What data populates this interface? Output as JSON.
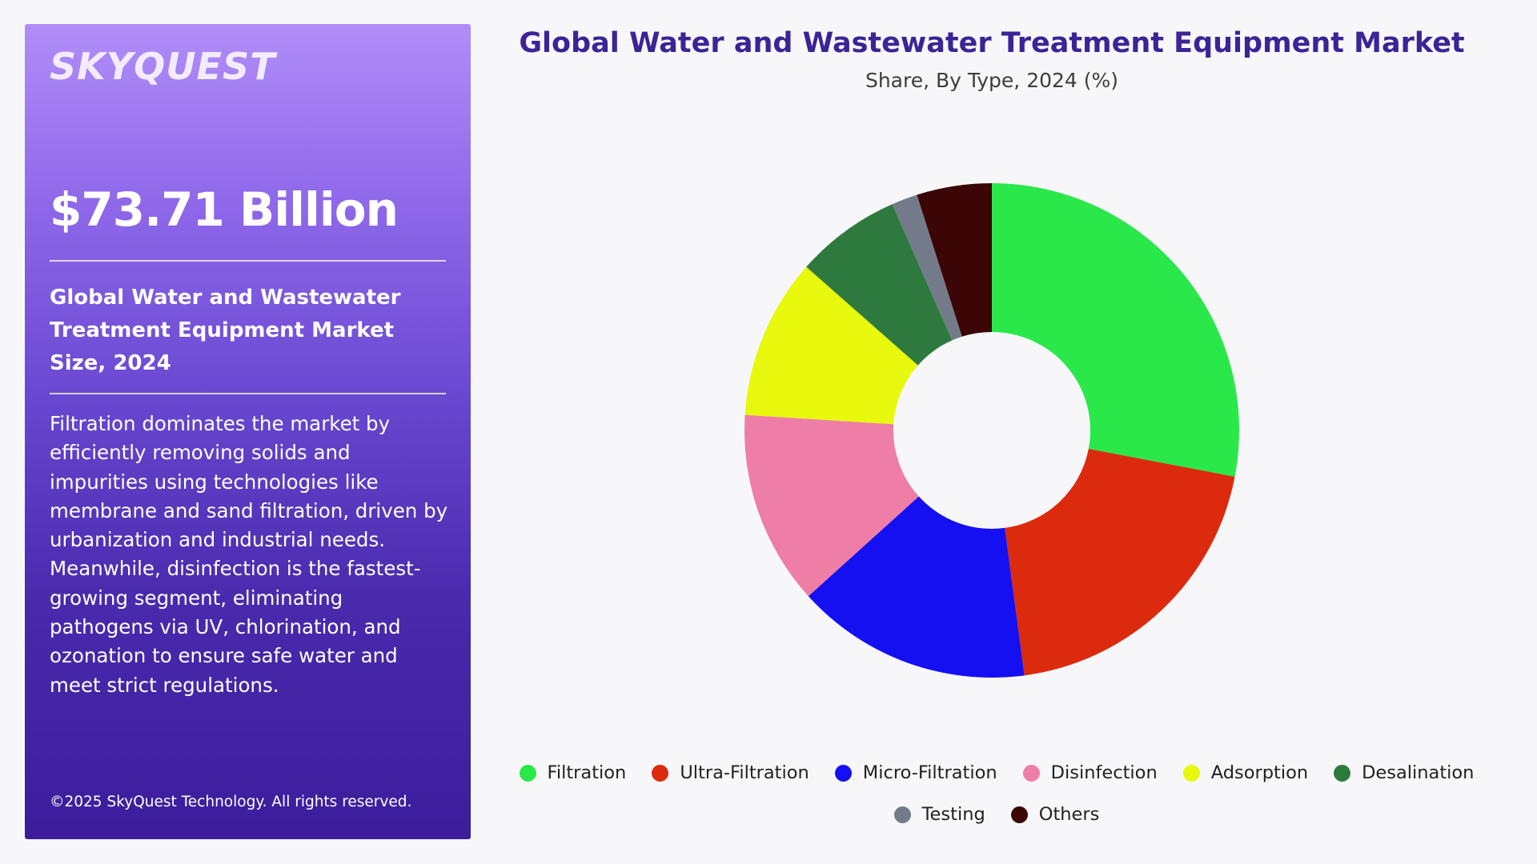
{
  "sidebar": {
    "logo": "SKYQUEST",
    "market_value": "$73.71 Billion",
    "market_title": "Global Water and Wastewater Treatment Equipment Market Size, 2024",
    "description": "Filtration dominates the market by efficiently removing solids and impurities using technologies like membrane and sand filtration, driven by urbanization and industrial needs. Meanwhile, disinfection is the fastest-growing segment, eliminating pathogens via UV, chlorination, and ozonation to ensure safe water and meet strict regulations.",
    "copyright": "©2025 SkyQuest Technology. All rights reserved."
  },
  "chart_data": {
    "type": "pie",
    "title": "Global Water and Wastewater Treatment Equipment Market",
    "subtitle": "Share, By Type, 2024 (%)",
    "donut": true,
    "legend_position": "bottom",
    "series": [
      {
        "name": "Filtration",
        "value": 28.0,
        "color": "#2ae84a"
      },
      {
        "name": "Ultra-Filtration",
        "value": 19.9,
        "color": "#dc2a0e"
      },
      {
        "name": "Micro-Filtration",
        "value": 15.4,
        "color": "#1510f2"
      },
      {
        "name": "Disinfection",
        "value": 12.7,
        "color": "#ee7ea6"
      },
      {
        "name": "Adsorption",
        "value": 10.5,
        "color": "#e8f90e"
      },
      {
        "name": "Desalination",
        "value": 6.9,
        "color": "#2e7a3e"
      },
      {
        "name": "Testing",
        "value": 1.7,
        "color": "#737b8a"
      },
      {
        "name": "Others",
        "value": 4.9,
        "color": "#3c0606"
      }
    ]
  },
  "colors": {
    "title": "#3a2496",
    "panel_top": "#b08df8",
    "panel_bottom": "#3b1d9c",
    "background": "#f7f7fa"
  }
}
